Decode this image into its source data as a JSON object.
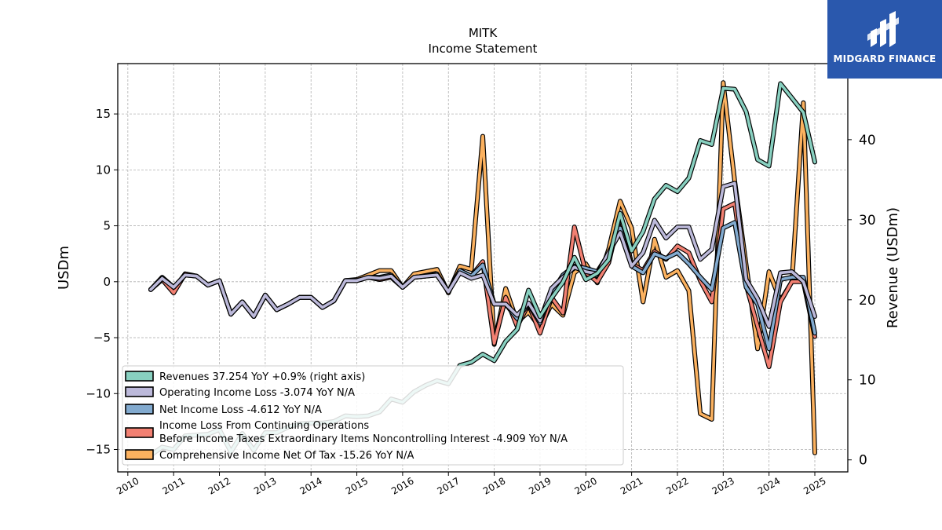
{
  "brand": {
    "name": "MIDGARD FINANCE",
    "bg": "#2a58ad"
  },
  "chart_data": {
    "type": "line",
    "title": "MITK",
    "subtitle": "Income Statement",
    "ylabel": "USDm",
    "ylabel_right": "Revenue (USDm)",
    "ylim_left": [
      -17,
      19.5
    ],
    "ylim_right": [
      -1.5,
      49.5
    ],
    "xlim": [
      2009.78,
      2025.72
    ],
    "x_ticks": [
      "2010",
      "2011",
      "2012",
      "2013",
      "2014",
      "2015",
      "2016",
      "2017",
      "2018",
      "2019",
      "2020",
      "2021",
      "2022",
      "2023",
      "2024",
      "2025"
    ],
    "y_ticks_left": [
      {
        "v": 15,
        "label": "15"
      },
      {
        "v": 10,
        "label": "10"
      },
      {
        "v": 5,
        "label": "5"
      },
      {
        "v": 0,
        "label": "0"
      },
      {
        "v": -5,
        "label": "−5"
      },
      {
        "v": -10,
        "label": "−10"
      },
      {
        "v": -15,
        "label": "−15"
      }
    ],
    "y_ticks_right": [
      {
        "v": 40,
        "label": "40"
      },
      {
        "v": 30,
        "label": "30"
      },
      {
        "v": 20,
        "label": "20"
      },
      {
        "v": 10,
        "label": "10"
      },
      {
        "v": 0,
        "label": "0"
      }
    ],
    "grid": true,
    "legend_position": "lower-left",
    "series": [
      {
        "name": "Revenues  37.254 YoY +0.9% (right axis)",
        "color": "#88d0c0",
        "axis": "right",
        "x": [
          2010.5,
          2010.75,
          2011.0,
          2011.25,
          2011.5,
          2011.75,
          2012.0,
          2012.25,
          2012.5,
          2012.75,
          2013.0,
          2013.25,
          2013.5,
          2013.75,
          2014.0,
          2014.25,
          2014.5,
          2014.75,
          2015.0,
          2015.25,
          2015.5,
          2015.75,
          2016.0,
          2016.25,
          2016.5,
          2016.75,
          2017.0,
          2017.25,
          2017.5,
          2017.75,
          2018.0,
          2018.25,
          2018.5,
          2018.75,
          2019.0,
          2019.25,
          2019.5,
          2019.75,
          2020.0,
          2020.25,
          2020.5,
          2020.75,
          2021.0,
          2021.25,
          2021.5,
          2021.75,
          2022.0,
          2022.25,
          2022.5,
          2022.75,
          2023.0,
          2023.25,
          2023.5,
          2023.75,
          2024.0,
          2024.25,
          2024.5,
          2024.75,
          2025.0
        ],
        "values": [
          0.6,
          1.6,
          1.3,
          3.0,
          3.1,
          3.2,
          3.8,
          1.0,
          3.3,
          1.2,
          3.4,
          3.4,
          4.1,
          4.5,
          4.6,
          4.6,
          4.8,
          5.5,
          5.4,
          5.5,
          6.0,
          7.6,
          7.2,
          8.5,
          9.3,
          9.9,
          9.5,
          11.8,
          12.2,
          13.2,
          12.4,
          14.8,
          16.3,
          21.2,
          17.9,
          20.2,
          22.2,
          25.3,
          22.5,
          23.3,
          25.0,
          30.8,
          26.1,
          28.5,
          32.6,
          34.3,
          33.5,
          35.2,
          39.9,
          39.4,
          46.4,
          46.3,
          43.5,
          37.5,
          36.7,
          47.0,
          45.2,
          43.4,
          37.2
        ]
      },
      {
        "name": "Operating Income Loss  -3.074 YoY N/A",
        "color": "#bcb9da",
        "axis": "left",
        "x": [
          2010.5,
          2010.75,
          2011.0,
          2011.25,
          2011.5,
          2011.75,
          2012.0,
          2012.25,
          2012.5,
          2012.75,
          2013.0,
          2013.25,
          2013.5,
          2013.75,
          2014.0,
          2014.25,
          2014.5,
          2014.75,
          2015.0,
          2015.25,
          2015.5,
          2015.75,
          2016.0,
          2016.25,
          2016.5,
          2016.75,
          2017.0,
          2017.25,
          2017.5,
          2017.75,
          2018.0,
          2018.25,
          2018.5,
          2018.75,
          2019.0,
          2019.25,
          2019.5,
          2019.75,
          2020.0,
          2020.25,
          2020.5,
          2020.75,
          2021.0,
          2021.25,
          2021.5,
          2021.75,
          2022.0,
          2022.25,
          2022.5,
          2022.75,
          2023.0,
          2023.25,
          2023.5,
          2023.75,
          2024.0,
          2024.25,
          2024.5,
          2024.75,
          2025.0
        ],
        "values": [
          -0.7,
          0.3,
          -0.5,
          0.6,
          0.5,
          -0.3,
          0.1,
          -2.9,
          -1.8,
          -3.1,
          -1.2,
          -2.5,
          -2.0,
          -1.4,
          -1.4,
          -2.3,
          -1.7,
          0.1,
          0.1,
          0.4,
          0.3,
          0.5,
          -0.5,
          0.4,
          0.5,
          0.6,
          -0.9,
          0.8,
          0.3,
          0.6,
          -2.0,
          -2.0,
          -3.0,
          -1.9,
          -3.5,
          -0.6,
          0.4,
          1.3,
          0.9,
          0.7,
          2.6,
          4.4,
          1.4,
          2.6,
          5.5,
          3.9,
          4.9,
          4.9,
          2.0,
          2.9,
          8.5,
          8.8,
          0.2,
          -1.5,
          -4.0,
          0.8,
          0.9,
          0.0,
          -3.1
        ]
      },
      {
        "name": "Net Income Loss  -4.612 YoY N/A",
        "color": "#82aacf",
        "axis": "left",
        "x": [
          2010.5,
          2010.75,
          2011.0,
          2011.25,
          2011.5,
          2011.75,
          2012.0,
          2012.25,
          2012.5,
          2012.75,
          2013.0,
          2013.25,
          2013.5,
          2013.75,
          2014.0,
          2014.25,
          2014.5,
          2014.75,
          2015.0,
          2015.25,
          2015.5,
          2015.75,
          2016.0,
          2016.25,
          2016.5,
          2016.75,
          2017.0,
          2017.25,
          2017.5,
          2017.75,
          2018.0,
          2018.25,
          2018.5,
          2018.75,
          2019.0,
          2019.25,
          2019.5,
          2019.75,
          2020.0,
          2020.25,
          2020.5,
          2020.75,
          2021.0,
          2021.25,
          2021.5,
          2021.75,
          2022.0,
          2022.25,
          2022.5,
          2022.75,
          2023.0,
          2023.25,
          2023.5,
          2023.75,
          2024.0,
          2024.25,
          2024.5,
          2024.75,
          2025.0
        ],
        "values": [
          -0.7,
          0.4,
          -0.5,
          0.6,
          0.5,
          -0.3,
          0.1,
          -2.9,
          -1.8,
          -3.1,
          -1.2,
          -2.5,
          -2.0,
          -1.4,
          -1.4,
          -2.3,
          -1.7,
          0.1,
          0.1,
          0.4,
          0.4,
          0.6,
          -0.5,
          0.4,
          0.5,
          0.7,
          -0.9,
          1.0,
          0.5,
          1.5,
          -2.0,
          -2.0,
          -3.3,
          -2.0,
          -3.7,
          -1.0,
          0.6,
          1.4,
          1.2,
          0.9,
          2.5,
          4.8,
          1.4,
          0.8,
          2.5,
          2.1,
          2.6,
          1.6,
          0.4,
          -0.7,
          4.8,
          5.3,
          -0.5,
          -2.0,
          -6.0,
          0.2,
          0.4,
          0.4,
          -4.6
        ]
      },
      {
        "name": "Income Loss From Continuing Operations Before Income Taxes Extraordinary Items Noncontrolling Interest  -4.909 YoY N/A",
        "legend_lines": [
          "Income Loss From Continuing Operations",
          "Before Income Taxes Extraordinary Items Noncontrolling Interest  -4.909 YoY N/A"
        ],
        "color": "#f28072",
        "axis": "left",
        "x": [
          2010.5,
          2010.75,
          2011.0,
          2011.25,
          2011.5,
          2011.75,
          2012.0,
          2012.25,
          2012.5,
          2012.75,
          2013.0,
          2013.25,
          2013.5,
          2013.75,
          2014.0,
          2014.25,
          2014.5,
          2014.75,
          2015.0,
          2015.25,
          2015.5,
          2015.75,
          2016.0,
          2016.25,
          2016.5,
          2016.75,
          2017.0,
          2017.25,
          2017.5,
          2017.75,
          2018.0,
          2018.25,
          2018.5,
          2018.75,
          2019.0,
          2019.25,
          2019.5,
          2019.75,
          2020.0,
          2020.25,
          2020.5,
          2020.75,
          2021.0,
          2021.25,
          2021.5,
          2021.75,
          2022.0,
          2022.25,
          2022.5,
          2022.75,
          2023.0,
          2023.25,
          2023.5,
          2023.75,
          2024.0,
          2024.25,
          2024.5,
          2024.75,
          2025.0
        ],
        "values": [
          -0.7,
          0.2,
          -1.0,
          0.7,
          0.5,
          -0.3,
          0.1,
          -2.9,
          -1.8,
          -3.1,
          -1.2,
          -2.5,
          -2.0,
          -1.4,
          -1.4,
          -2.3,
          -1.7,
          0.1,
          0.1,
          0.4,
          0.2,
          0.4,
          -0.5,
          0.4,
          0.5,
          0.6,
          -0.9,
          1.0,
          0.5,
          1.8,
          -5.5,
          -1.4,
          -4.0,
          -2.0,
          -4.6,
          -1.4,
          -2.8,
          4.9,
          0.8,
          0.0,
          1.7,
          6.0,
          1.6,
          1.0,
          2.7,
          2.0,
          3.2,
          2.6,
          0.1,
          -1.8,
          6.5,
          7.0,
          -0.3,
          -4.0,
          -7.6,
          -1.8,
          0.0,
          0.0,
          -4.9
        ]
      },
      {
        "name": "Comprehensive Income Net Of Tax  -15.26 YoY N/A",
        "color": "#fbb15f",
        "axis": "left",
        "x": [
          2010.5,
          2010.75,
          2011.0,
          2011.25,
          2011.5,
          2011.75,
          2012.0,
          2012.25,
          2012.5,
          2012.75,
          2013.0,
          2013.25,
          2013.5,
          2013.75,
          2014.0,
          2014.25,
          2014.5,
          2014.75,
          2015.0,
          2015.25,
          2015.5,
          2015.75,
          2016.0,
          2016.25,
          2016.5,
          2016.75,
          2017.0,
          2017.25,
          2017.5,
          2017.75,
          2018.0,
          2018.25,
          2018.5,
          2018.75,
          2019.0,
          2019.25,
          2019.5,
          2019.75,
          2020.0,
          2020.25,
          2020.5,
          2020.75,
          2021.0,
          2021.25,
          2021.5,
          2021.75,
          2022.0,
          2022.25,
          2022.5,
          2022.75,
          2023.0,
          2023.25,
          2023.5,
          2023.75,
          2024.0,
          2024.25,
          2024.5,
          2024.75,
          2025.0
        ],
        "values": [
          -0.7,
          0.3,
          -0.7,
          0.7,
          0.5,
          -0.3,
          0.1,
          -2.9,
          -1.8,
          -3.1,
          -1.2,
          -2.5,
          -2.0,
          -1.4,
          -1.4,
          -2.3,
          -1.7,
          0.1,
          0.2,
          0.6,
          1.0,
          1.0,
          -0.5,
          0.7,
          0.9,
          1.1,
          -1.0,
          1.4,
          1.1,
          13.0,
          -5.6,
          -0.6,
          -3.6,
          -2.7,
          -4.1,
          -2.0,
          -3.0,
          0.8,
          1.6,
          -0.1,
          2.9,
          7.2,
          4.8,
          -1.8,
          3.8,
          0.4,
          1.0,
          -0.8,
          -11.8,
          -12.3,
          17.8,
          9.0,
          1.5,
          -6.0,
          0.9,
          -1.7,
          0.0,
          16.0,
          -15.3
        ]
      }
    ]
  }
}
